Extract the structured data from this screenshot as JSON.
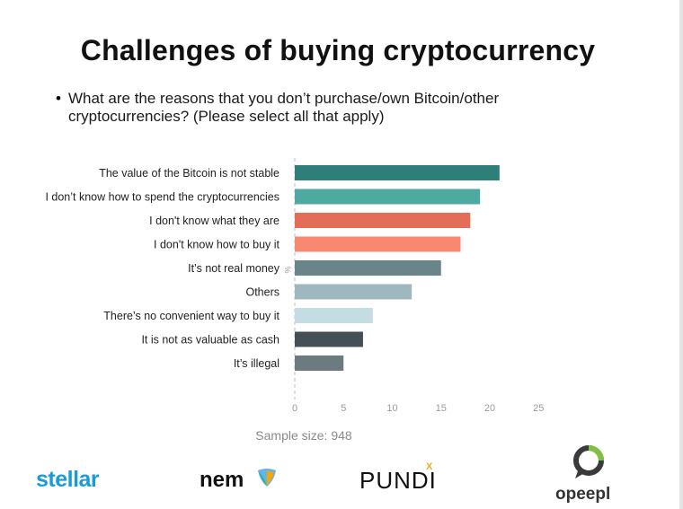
{
  "title": "Challenges of buying cryptocurrency",
  "question": "What are the reasons that you don’t purchase/own Bitcoin/other cryptocurrencies? (Please select all that apply)",
  "sample_size": "Sample size: 948",
  "logos": {
    "stellar": "stellar",
    "nem": "nem",
    "pundi": "PUNDI",
    "pundi_x": "X",
    "opeepl": "opeepl"
  },
  "chart_data": {
    "type": "bar",
    "orientation": "horizontal",
    "categories": [
      "The value of the Bitcoin is not stable",
      "I don’t know how to spend the cryptocurrencies",
      "I don't know what they are",
      "I don't know how to buy it",
      "It’s not real money",
      "Others",
      "There’s no convenient way to buy it",
      "It is not as valuable as cash",
      "It’s illegal"
    ],
    "values": [
      21,
      19,
      18,
      17,
      15,
      12,
      8,
      7,
      5
    ],
    "colors": [
      "#2e7f77",
      "#4ea9a0",
      "#e56c56",
      "#f88970",
      "#6a8589",
      "#9fb8bf",
      "#c3dde3",
      "#444f56",
      "#6d7b80"
    ],
    "xlim": [
      0,
      25
    ],
    "xticks": [
      0,
      5,
      10,
      15,
      20,
      25
    ],
    "axis_unit": "%",
    "grid": false
  }
}
